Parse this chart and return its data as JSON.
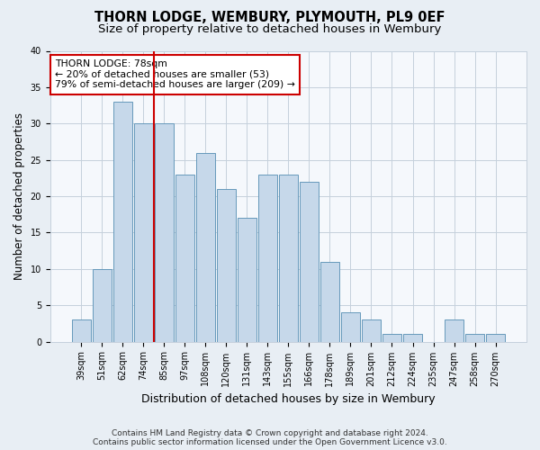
{
  "title": "THORN LODGE, WEMBURY, PLYMOUTH, PL9 0EF",
  "subtitle": "Size of property relative to detached houses in Wembury",
  "xlabel": "Distribution of detached houses by size in Wembury",
  "ylabel": "Number of detached properties",
  "categories": [
    "39sqm",
    "51sqm",
    "62sqm",
    "74sqm",
    "85sqm",
    "97sqm",
    "108sqm",
    "120sqm",
    "131sqm",
    "143sqm",
    "155sqm",
    "166sqm",
    "178sqm",
    "189sqm",
    "201sqm",
    "212sqm",
    "224sqm",
    "235sqm",
    "247sqm",
    "258sqm",
    "270sqm"
  ],
  "values": [
    3,
    10,
    33,
    30,
    30,
    23,
    26,
    21,
    17,
    23,
    23,
    22,
    11,
    4,
    3,
    1,
    1,
    0,
    3,
    1,
    1
  ],
  "bar_color": "#c6d8ea",
  "bar_edge_color": "#6699bb",
  "vline_x": 3.5,
  "vline_color": "#cc0000",
  "annotation_text": "THORN LODGE: 78sqm\n← 20% of detached houses are smaller (53)\n79% of semi-detached houses are larger (209) →",
  "annotation_box_color": "#ffffff",
  "annotation_box_edge_color": "#cc0000",
  "ylim": [
    0,
    40
  ],
  "yticks": [
    0,
    5,
    10,
    15,
    20,
    25,
    30,
    35,
    40
  ],
  "footer": "Contains HM Land Registry data © Crown copyright and database right 2024.\nContains public sector information licensed under the Open Government Licence v3.0.",
  "bg_color": "#e8eef4",
  "plot_bg_color": "#f5f8fc",
  "grid_color": "#c5d0dc",
  "title_fontsize": 10.5,
  "subtitle_fontsize": 9.5,
  "tick_fontsize": 7,
  "ylabel_fontsize": 8.5,
  "xlabel_fontsize": 9
}
